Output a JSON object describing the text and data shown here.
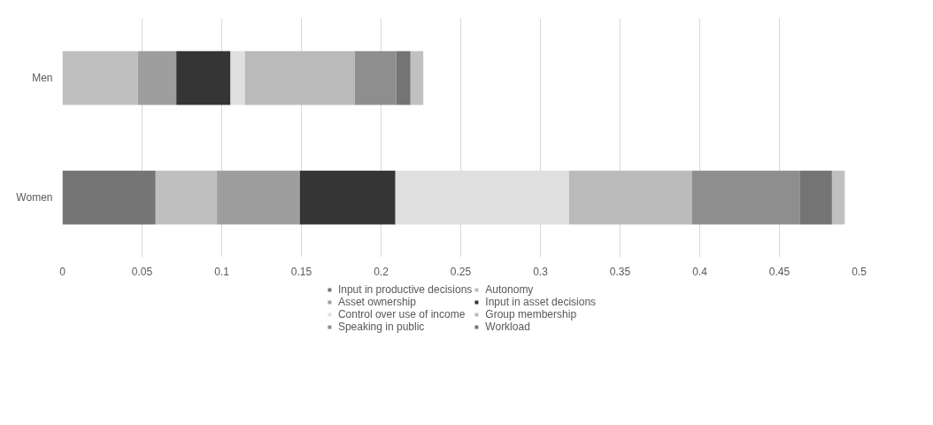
{
  "chart_data": {
    "type": "bar",
    "orientation": "horizontal",
    "stacked": true,
    "categories": [
      "Men",
      "Women"
    ],
    "series": [
      {
        "name": "Input in productive decisions",
        "color": "#757575",
        "values": [
          0,
          0.0585
        ]
      },
      {
        "name": "Autonomy",
        "color": "#bfbfbf",
        "values": [
          0.0475,
          0.0385
        ]
      },
      {
        "name": "Asset ownership",
        "color": "#9e9e9e",
        "values": [
          0.024,
          0.052
        ]
      },
      {
        "name": "Input in asset decisions",
        "color": "#353535",
        "values": [
          0.034,
          0.06
        ]
      },
      {
        "name": "Control over use of income",
        "color": "#e0e0e0",
        "values": [
          0.009,
          0.109
        ]
      },
      {
        "name": "Group membership",
        "color": "#bababa",
        "values": [
          0.069,
          0.077
        ]
      },
      {
        "name": "Speaking in public",
        "color": "#8e8e8e",
        "values": [
          0.026,
          0.068
        ]
      },
      {
        "name": "Workload",
        "color": "#747474",
        "values": [
          0.009,
          0.02
        ]
      },
      {
        "color": "#c0c0c0",
        "values": [
          0.008,
          0.008
        ]
      }
    ],
    "xlim": [
      0,
      0.5
    ],
    "xticks": [
      0,
      0.05,
      0.1,
      0.15,
      0.2,
      0.25,
      0.3,
      0.35,
      0.4,
      0.45,
      0.5
    ],
    "grid": "x",
    "legend": "bottom"
  }
}
